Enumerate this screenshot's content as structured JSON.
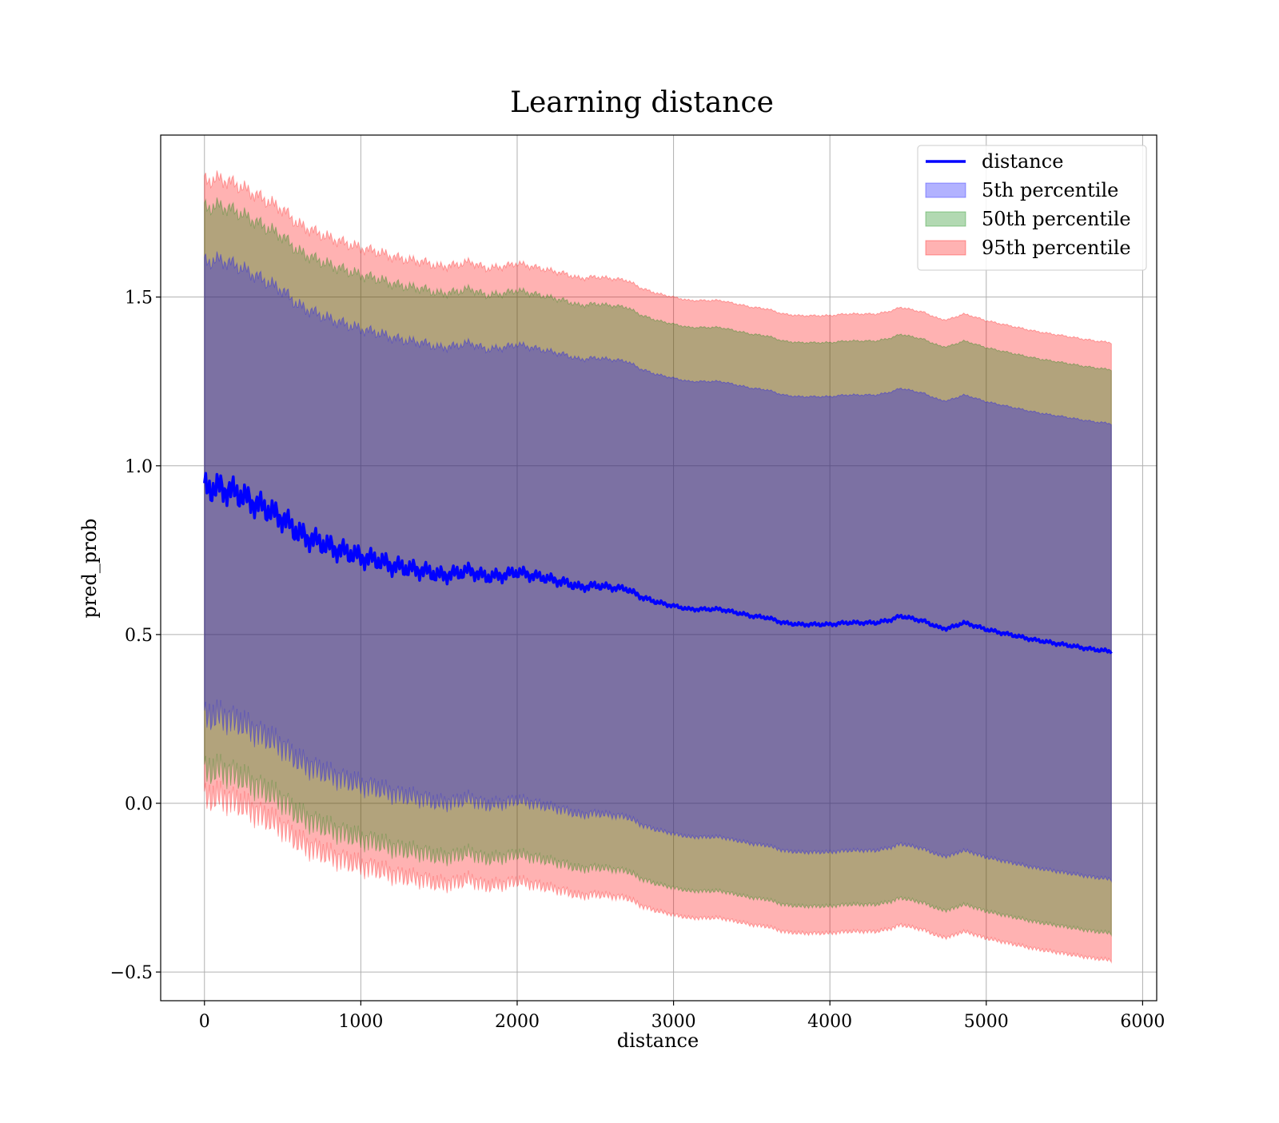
{
  "chart_data": {
    "type": "area",
    "title": "Learning distance",
    "xlabel": "distance",
    "ylabel": "pred_prob",
    "xlim": [
      -280,
      6090
    ],
    "ylim": [
      -0.585,
      1.98
    ],
    "x_ticks": [
      0,
      1000,
      2000,
      3000,
      4000,
      5000,
      6000
    ],
    "x_tick_labels": [
      "0",
      "1000",
      "2000",
      "3000",
      "4000",
      "5000",
      "6000"
    ],
    "y_ticks": [
      -0.5,
      0.0,
      0.5,
      1.0,
      1.5
    ],
    "y_tick_labels": [
      "−0.5",
      "0.0",
      "0.5",
      "1.0",
      "1.5"
    ],
    "grid": true,
    "legend_position": "upper right",
    "x": [
      0,
      100,
      200,
      300,
      400,
      500,
      600,
      700,
      800,
      900,
      1000,
      1100,
      1200,
      1300,
      1400,
      1500,
      1600,
      1700,
      1800,
      1900,
      2000,
      2100,
      2200,
      2300,
      2400,
      2500,
      2600,
      2700,
      2800,
      2900,
      3000,
      3100,
      3200,
      3300,
      3400,
      3500,
      3600,
      3700,
      3800,
      3900,
      4000,
      4100,
      4200,
      4300,
      4400,
      4450,
      4500,
      4600,
      4700,
      4750,
      4800,
      4850,
      4900,
      5000,
      5100,
      5200,
      5300,
      5400,
      5500,
      5600,
      5700,
      5800
    ],
    "series": [
      {
        "name": "distance",
        "kind": "line",
        "color": "#0000ff",
        "values": [
          0.93,
          0.935,
          0.92,
          0.895,
          0.87,
          0.845,
          0.8,
          0.78,
          0.76,
          0.745,
          0.73,
          0.72,
          0.705,
          0.695,
          0.69,
          0.675,
          0.68,
          0.69,
          0.67,
          0.675,
          0.685,
          0.675,
          0.665,
          0.655,
          0.64,
          0.645,
          0.64,
          0.635,
          0.61,
          0.595,
          0.585,
          0.575,
          0.575,
          0.575,
          0.565,
          0.555,
          0.55,
          0.535,
          0.53,
          0.53,
          0.53,
          0.535,
          0.535,
          0.535,
          0.545,
          0.555,
          0.55,
          0.54,
          0.52,
          0.518,
          0.525,
          0.535,
          0.53,
          0.515,
          0.505,
          0.495,
          0.485,
          0.477,
          0.47,
          0.462,
          0.455,
          0.45
        ]
      },
      {
        "name": "5th percentile",
        "kind": "band",
        "color": "#0000ff",
        "half_width": 0.675
      },
      {
        "name": "50th percentile",
        "kind": "band",
        "color": "#008000",
        "half_width": 0.835
      },
      {
        "name": "95th percentile",
        "kind": "band",
        "color": "#ff0000",
        "half_width": 0.915
      }
    ]
  }
}
